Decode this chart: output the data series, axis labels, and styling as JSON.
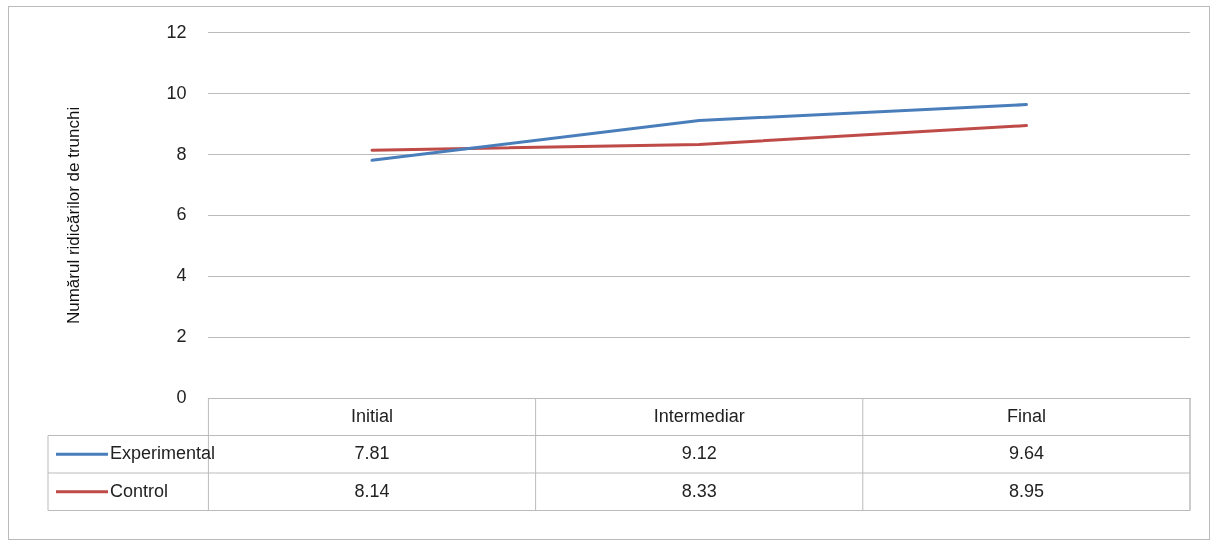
{
  "chart_data": {
    "type": "line",
    "ylabel": "Numărul ridicărilor de trunchi",
    "categories": [
      "Initial",
      "Intermediar",
      "Final"
    ],
    "series": [
      {
        "name": "Experimental",
        "color": "#4a7ebb",
        "values": [
          7.81,
          9.12,
          9.64
        ]
      },
      {
        "name": "Control",
        "color": "#be4b48",
        "values": [
          8.14,
          8.33,
          8.95
        ]
      }
    ],
    "ylim": [
      0,
      12
    ],
    "yticks": [
      0,
      2,
      4,
      6,
      8,
      10,
      12
    ],
    "grid": "y",
    "data_labels": true,
    "legend": "bottom",
    "marker": "none",
    "line_style": "solid"
  }
}
